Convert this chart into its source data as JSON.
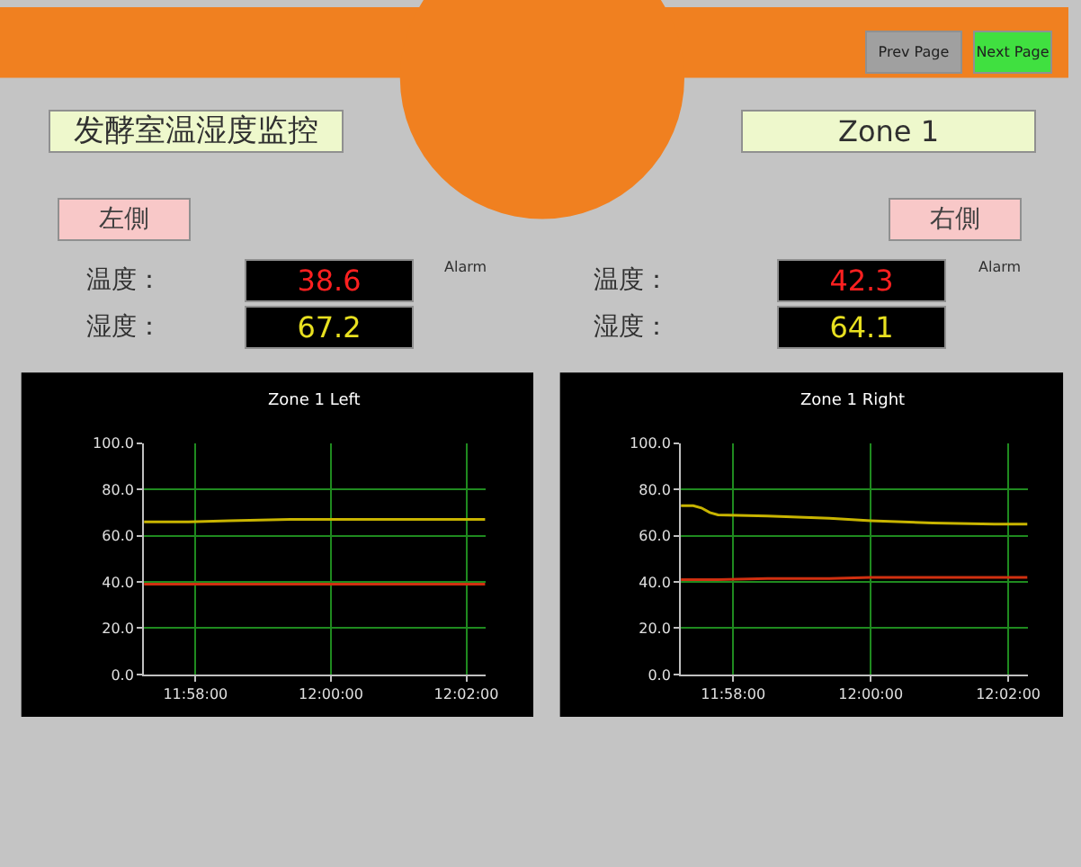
{
  "chart_data": [
    {
      "type": "other",
      "annotations": [
        "Prev Page",
        "Next Page",
        "发酵室温湿度监控",
        "Zone 1",
        "左側",
        "右側",
        "温度：",
        "湿度：",
        "38.6",
        "67.2",
        "温度：",
        "湿度：",
        "42.3",
        "64.1",
        "Alarm",
        "Alarm"
      ]
    },
    {
      "type": "line",
      "title": "Zone 1 Left",
      "x": [
        11.954,
        11.965,
        11.975,
        11.99,
        12.0,
        12.015,
        12.03,
        12.038
      ],
      "series": [
        {
          "color": "#c8b400",
          "values": [
            66,
            66,
            66.5,
            67,
            67,
            67,
            67,
            67
          ]
        },
        {
          "color": "#d03010",
          "values": [
            39,
            39,
            39,
            39,
            39,
            39,
            39,
            39
          ]
        }
      ],
      "xlim": [
        11.954,
        12.038
      ],
      "ylim": [
        0,
        100
      ],
      "xticks": [
        {
          "value": 11.96667,
          "label": "11:58:00"
        },
        {
          "value": 12.0,
          "label": "12:00:00"
        },
        {
          "value": 12.03333,
          "label": "12:02:00"
        }
      ],
      "yticks": [
        {
          "value": 0,
          "label": "0.0"
        },
        {
          "value": 20,
          "label": "20.0"
        },
        {
          "value": 40,
          "label": "40.0"
        },
        {
          "value": 60,
          "label": "60.0"
        },
        {
          "value": 80,
          "label": "80.0"
        },
        {
          "value": 100,
          "label": "100.0"
        }
      ],
      "grid": true,
      "marker": "none"
    },
    {
      "type": "line",
      "title": "Zone 1 Right",
      "x": [
        11.954,
        11.957,
        11.959,
        11.961,
        11.963,
        11.975,
        11.99,
        12.0,
        12.015,
        12.03,
        12.038
      ],
      "series": [
        {
          "color": "#c8b400",
          "values": [
            73,
            73,
            72,
            70,
            69,
            68.5,
            67.5,
            66.5,
            65.5,
            65,
            65
          ]
        },
        {
          "color": "#d03010",
          "values": [
            41,
            41,
            41,
            41,
            41,
            41.5,
            41.5,
            42,
            42,
            42,
            42
          ]
        }
      ],
      "xlim": [
        11.954,
        12.038
      ],
      "ylim": [
        0,
        100
      ],
      "xticks": [
        {
          "value": 11.96667,
          "label": "11:58:00"
        },
        {
          "value": 12.0,
          "label": "12:00:00"
        },
        {
          "value": 12.03333,
          "label": "12:02:00"
        }
      ],
      "yticks": [
        {
          "value": 0,
          "label": "0.0"
        },
        {
          "value": 20,
          "label": "20.0"
        },
        {
          "value": 40,
          "label": "40.0"
        },
        {
          "value": 60,
          "label": "60.0"
        },
        {
          "value": 80,
          "label": "80.0"
        },
        {
          "value": 100,
          "label": "100.0"
        }
      ],
      "grid": true,
      "marker": "none"
    }
  ]
}
